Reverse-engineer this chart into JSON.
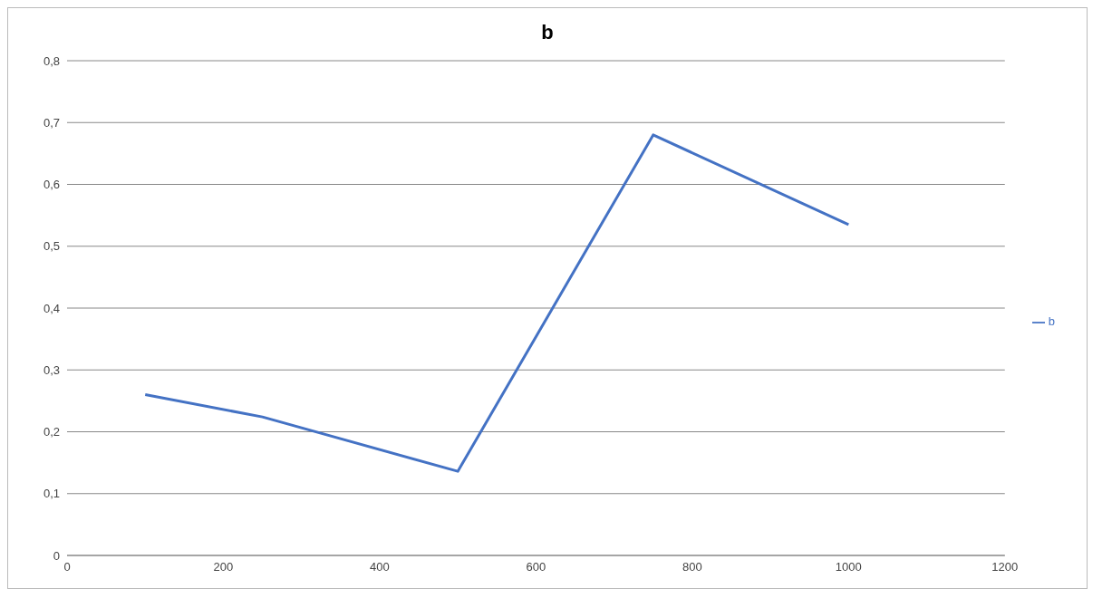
{
  "chart_data": {
    "type": "line",
    "title": "b",
    "x": [
      100,
      250,
      500,
      750,
      1000
    ],
    "series": [
      {
        "name": "b",
        "color": "#4472c4",
        "values": [
          0.26,
          0.224,
          0.136,
          0.68,
          0.535
        ]
      }
    ],
    "xlim": [
      0,
      1200
    ],
    "xticks": [
      0,
      200,
      400,
      600,
      800,
      1000,
      1200
    ],
    "ylim": [
      0,
      0.8
    ],
    "yticks": [
      0,
      {
        "value": 0.1,
        "label": "0,1"
      },
      {
        "value": 0.2,
        "label": "0,2"
      },
      {
        "value": 0.3,
        "label": "0,3"
      },
      {
        "value": 0.4,
        "label": "0,4"
      },
      {
        "value": 0.5,
        "label": "0,5"
      },
      {
        "value": 0.6,
        "label": "0,6"
      },
      {
        "value": 0.7,
        "label": "0,7"
      },
      {
        "value": 0.8,
        "label": "0,8"
      }
    ],
    "grid": "y",
    "legend": "right",
    "marker": "none",
    "line_style": "solid"
  }
}
